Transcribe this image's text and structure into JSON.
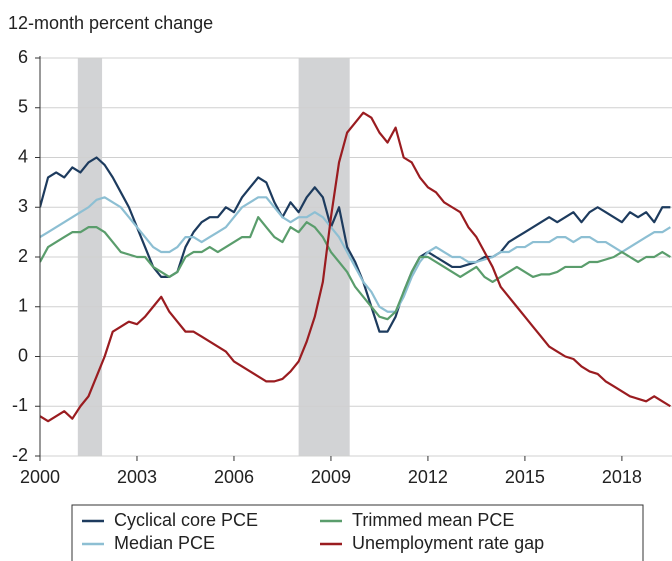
{
  "chart_data": {
    "type": "line",
    "title": "12-month percent change",
    "x": [
      2000,
      2000.25,
      2000.5,
      2000.75,
      2001,
      2001.25,
      2001.5,
      2001.75,
      2002,
      2002.25,
      2002.5,
      2002.75,
      2003,
      2003.25,
      2003.5,
      2003.75,
      2004,
      2004.25,
      2004.5,
      2004.75,
      2005,
      2005.25,
      2005.5,
      2005.75,
      2006,
      2006.25,
      2006.5,
      2006.75,
      2007,
      2007.25,
      2007.5,
      2007.75,
      2008,
      2008.25,
      2008.5,
      2008.75,
      2009,
      2009.25,
      2009.5,
      2009.75,
      2010,
      2010.25,
      2010.5,
      2010.75,
      2011,
      2011.25,
      2011.5,
      2011.75,
      2012,
      2012.25,
      2012.5,
      2012.75,
      2013,
      2013.25,
      2013.5,
      2013.75,
      2014,
      2014.25,
      2014.5,
      2014.75,
      2015,
      2015.25,
      2015.5,
      2015.75,
      2016,
      2016.25,
      2016.5,
      2016.75,
      2017,
      2017.25,
      2017.5,
      2017.75,
      2018,
      2018.25,
      2018.5,
      2018.75,
      2019,
      2019.25,
      2019.5
    ],
    "series": [
      {
        "name": "Cyclical core PCE",
        "color": "#1d3b5e",
        "values": [
          3.0,
          3.6,
          3.7,
          3.6,
          3.8,
          3.7,
          3.9,
          4.0,
          3.85,
          3.6,
          3.3,
          3.0,
          2.6,
          2.2,
          1.8,
          1.6,
          1.6,
          1.7,
          2.2,
          2.5,
          2.7,
          2.8,
          2.8,
          3.0,
          2.9,
          3.2,
          3.4,
          3.6,
          3.5,
          3.1,
          2.8,
          3.1,
          2.9,
          3.2,
          3.4,
          3.2,
          2.6,
          3.0,
          2.2,
          1.9,
          1.5,
          1.0,
          0.5,
          0.5,
          0.8,
          1.3,
          1.7,
          2.0,
          2.1,
          2.0,
          1.9,
          1.8,
          1.8,
          1.85,
          1.9,
          2.0,
          2.0,
          2.1,
          2.3,
          2.4,
          2.5,
          2.6,
          2.7,
          2.8,
          2.7,
          2.8,
          2.9,
          2.7,
          2.9,
          3.0,
          2.9,
          2.8,
          2.7,
          2.9,
          2.8,
          2.9,
          2.7,
          3.0,
          3.0
        ]
      },
      {
        "name": "Median PCE",
        "color": "#8dbfd3",
        "values": [
          2.4,
          2.5,
          2.6,
          2.7,
          2.8,
          2.9,
          3.0,
          3.15,
          3.2,
          3.1,
          3.0,
          2.8,
          2.6,
          2.4,
          2.2,
          2.1,
          2.1,
          2.2,
          2.4,
          2.4,
          2.3,
          2.4,
          2.5,
          2.6,
          2.8,
          3.0,
          3.1,
          3.2,
          3.2,
          3.0,
          2.8,
          2.7,
          2.8,
          2.8,
          2.9,
          2.8,
          2.6,
          2.4,
          2.1,
          1.8,
          1.5,
          1.3,
          1.0,
          0.9,
          0.9,
          1.2,
          1.6,
          1.9,
          2.1,
          2.2,
          2.1,
          2.0,
          2.0,
          1.9,
          1.9,
          1.95,
          2.0,
          2.1,
          2.1,
          2.2,
          2.2,
          2.3,
          2.3,
          2.3,
          2.4,
          2.4,
          2.3,
          2.4,
          2.4,
          2.3,
          2.3,
          2.2,
          2.1,
          2.2,
          2.3,
          2.4,
          2.5,
          2.5,
          2.6
        ]
      },
      {
        "name": "Trimmed mean PCE",
        "color": "#5a9d6c",
        "values": [
          1.9,
          2.2,
          2.3,
          2.4,
          2.5,
          2.5,
          2.6,
          2.6,
          2.5,
          2.3,
          2.1,
          2.05,
          2.0,
          2.0,
          1.8,
          1.7,
          1.6,
          1.7,
          2.0,
          2.1,
          2.1,
          2.2,
          2.1,
          2.2,
          2.3,
          2.4,
          2.4,
          2.8,
          2.6,
          2.4,
          2.3,
          2.6,
          2.5,
          2.7,
          2.6,
          2.4,
          2.1,
          1.9,
          1.7,
          1.4,
          1.2,
          1.0,
          0.8,
          0.75,
          0.9,
          1.3,
          1.7,
          2.0,
          2.0,
          1.9,
          1.8,
          1.7,
          1.6,
          1.7,
          1.8,
          1.6,
          1.5,
          1.6,
          1.7,
          1.8,
          1.7,
          1.6,
          1.65,
          1.65,
          1.7,
          1.8,
          1.8,
          1.8,
          1.9,
          1.9,
          1.95,
          2.0,
          2.1,
          2.0,
          1.9,
          2.0,
          2.0,
          2.1,
          2.0
        ]
      },
      {
        "name": "Unemployment rate gap",
        "color": "#9a1c20",
        "values": [
          -1.2,
          -1.3,
          -1.2,
          -1.1,
          -1.25,
          -1.0,
          -0.8,
          -0.4,
          0.0,
          0.5,
          0.6,
          0.7,
          0.65,
          0.8,
          1.0,
          1.2,
          0.9,
          0.7,
          0.5,
          0.5,
          0.4,
          0.3,
          0.2,
          0.1,
          -0.1,
          -0.2,
          -0.3,
          -0.4,
          -0.5,
          -0.5,
          -0.45,
          -0.3,
          -0.1,
          0.3,
          0.8,
          1.5,
          2.8,
          3.9,
          4.5,
          4.7,
          4.9,
          4.8,
          4.5,
          4.3,
          4.6,
          4.0,
          3.9,
          3.6,
          3.4,
          3.3,
          3.1,
          3.0,
          2.9,
          2.6,
          2.4,
          2.1,
          1.8,
          1.4,
          1.2,
          1.0,
          0.8,
          0.6,
          0.4,
          0.2,
          0.1,
          0.0,
          -0.05,
          -0.2,
          -0.3,
          -0.35,
          -0.5,
          -0.6,
          -0.7,
          -0.8,
          -0.85,
          -0.9,
          -0.8,
          -0.9,
          -1.0
        ]
      }
    ],
    "shaded_periods": [
      [
        2001.17,
        2001.92
      ],
      [
        2008.0,
        2009.58
      ]
    ],
    "shade_color": "#d2d3d5",
    "xlim": [
      2000,
      2019.55
    ],
    "xticks": [
      2000,
      2003,
      2006,
      2009,
      2012,
      2015,
      2018
    ],
    "ylim": [
      -2,
      6
    ],
    "yticks": [
      -2,
      -1,
      0,
      1,
      2,
      3,
      4,
      5,
      6
    ],
    "grid": true
  }
}
